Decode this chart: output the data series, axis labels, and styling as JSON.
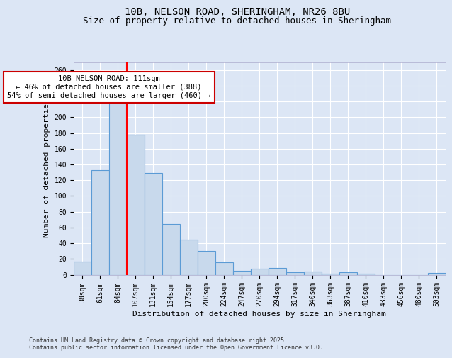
{
  "title_line1": "10B, NELSON ROAD, SHERINGHAM, NR26 8BU",
  "title_line2": "Size of property relative to detached houses in Sheringham",
  "xlabel": "Distribution of detached houses by size in Sheringham",
  "ylabel": "Number of detached properties",
  "categories": [
    "38sqm",
    "61sqm",
    "84sqm",
    "107sqm",
    "131sqm",
    "154sqm",
    "177sqm",
    "200sqm",
    "224sqm",
    "247sqm",
    "270sqm",
    "294sqm",
    "317sqm",
    "340sqm",
    "363sqm",
    "387sqm",
    "410sqm",
    "433sqm",
    "456sqm",
    "480sqm",
    "503sqm"
  ],
  "values": [
    17,
    133,
    228,
    178,
    129,
    64,
    45,
    30,
    16,
    5,
    8,
    9,
    3,
    4,
    1,
    3,
    1,
    0,
    0,
    0,
    2
  ],
  "bar_color": "#c8d9ec",
  "bar_edge_color": "#5b9bd5",
  "bar_edge_width": 0.8,
  "red_line_index": 3,
  "annotation_text": "10B NELSON ROAD: 111sqm\n← 46% of detached houses are smaller (388)\n54% of semi-detached houses are larger (460) →",
  "annotation_box_color": "#ffffff",
  "annotation_box_edge": "#cc0000",
  "ylim": [
    0,
    270
  ],
  "yticks": [
    0,
    20,
    40,
    60,
    80,
    100,
    120,
    140,
    160,
    180,
    200,
    220,
    240,
    260
  ],
  "background_color": "#dce6f5",
  "grid_color": "#ffffff",
  "fig_bg_color": "#dce6f5",
  "footer_text": "Contains HM Land Registry data © Crown copyright and database right 2025.\nContains public sector information licensed under the Open Government Licence v3.0.",
  "title_fontsize": 10,
  "subtitle_fontsize": 9,
  "axis_label_fontsize": 8,
  "tick_fontsize": 7,
  "annotation_fontsize": 7.5
}
